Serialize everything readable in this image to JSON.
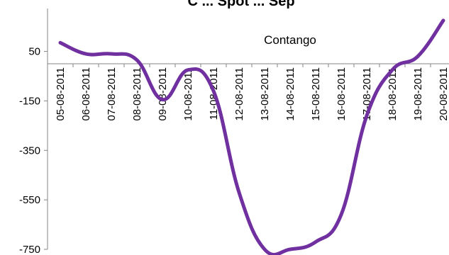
{
  "chart_data": {
    "type": "line",
    "title": "C ... Spot ... Sep",
    "categories": [
      "05-08-2011",
      "06-08-2011",
      "07-08-2011",
      "08-08-2011",
      "09-08-2011",
      "10-08-2011",
      "11-08-2011",
      "12-08-2011",
      "13-08-2011",
      "14-08-2011",
      "15-08-2011",
      "16-08-2011",
      "17-08-2011",
      "18-08-2011",
      "19-08-2011",
      "20-08-2011"
    ],
    "y_ticks": [
      "50",
      "-150",
      "-350",
      "-550",
      "-750"
    ],
    "ylim": [
      -750,
      150
    ],
    "series": [
      {
        "values": [
          85,
          40,
          40,
          15,
          -145,
          -25,
          -110,
          -520,
          -750,
          -750,
          -720,
          -610,
          -210,
          -25,
          30,
          175
        ]
      }
    ],
    "annotations": [
      {
        "text": "Contango",
        "x": "14-08-2011",
        "y": 80
      }
    ],
    "colors": {
      "line": "#7030A0",
      "axis": "#868686"
    },
    "grid": false,
    "legend": "none"
  }
}
